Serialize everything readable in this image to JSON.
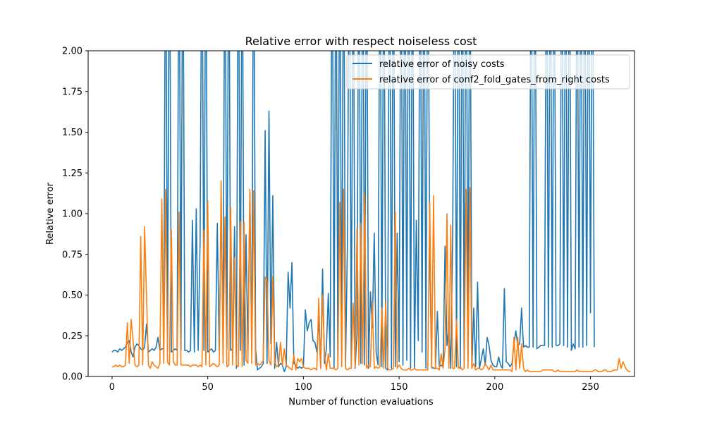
{
  "chart_data": {
    "type": "line",
    "title": "Relative error with respect noiseless cost",
    "xlabel": "Number of function evaluations",
    "ylabel": "Relative error",
    "xlim": [
      -12.5,
      273
    ],
    "ylim": [
      0,
      2
    ],
    "x_ticks": [
      0,
      50,
      100,
      150,
      200,
      250
    ],
    "x_tick_labels": [
      "0",
      "50",
      "100",
      "150",
      "200",
      "250"
    ],
    "y_ticks": [
      0.0,
      0.25,
      0.5,
      0.75,
      1.0,
      1.25,
      1.5,
      1.75,
      2.0
    ],
    "y_tick_labels": [
      "0.00",
      "0.25",
      "0.50",
      "0.75",
      "1.00",
      "1.25",
      "1.50",
      "1.75",
      "2.00"
    ],
    "legend_position": "top-right",
    "series": [
      {
        "name": "relative error of noisy costs",
        "color": "#1f77b4",
        "values": [
          0.15,
          0.16,
          0.16,
          0.15,
          0.17,
          0.16,
          0.17,
          0.18,
          0.21,
          0.22,
          0.15,
          0.12,
          0.18,
          0.2,
          0.19,
          0.17,
          0.16,
          0.18,
          0.32,
          0.15,
          0.16,
          0.17,
          0.16,
          0.18,
          0.24,
          0.16,
          0.17,
          0.17,
          3.0,
          0.16,
          3.0,
          0.15,
          0.16,
          0.17,
          0.16,
          3.0,
          0.16,
          3.0,
          0.16,
          0.16,
          0.15,
          0.16,
          0.96,
          0.15,
          1.03,
          0.16,
          0.82,
          3.0,
          0.16,
          3.0,
          0.15,
          0.16,
          0.17,
          0.15,
          0.16,
          0.94,
          0.16,
          1.04,
          0.26,
          3.0,
          0.17,
          3.0,
          0.16,
          0.17,
          0.92,
          0.05,
          3.0,
          0.16,
          3.0,
          0.07,
          0.87,
          0.15,
          1.13,
          0.16,
          3.0,
          0.17,
          0.04,
          0.05,
          0.06,
          0.08,
          1.51,
          0.08,
          1.63,
          0.2,
          1.11,
          0.05,
          0.21,
          0.06,
          0.08,
          0.07,
          0.03,
          0.06,
          0.64,
          0.42,
          0.7,
          0.08,
          0.07,
          0.05,
          0.06,
          0.05,
          0.06,
          0.41,
          0.28,
          0.33,
          0.35,
          0.22,
          0.21,
          0.15,
          0.36,
          0.05,
          0.66,
          0.08,
          0.17,
          0.51,
          0.12,
          3.0,
          0.05,
          3.0,
          0.05,
          3.0,
          0.06,
          3.0,
          0.06,
          0.82,
          3.0,
          0.06,
          3.0,
          0.05,
          0.26,
          3.0,
          0.08,
          3.0,
          0.07,
          3.0,
          0.05,
          0.52,
          0.3,
          0.88,
          0.15,
          0.07,
          3.0,
          0.06,
          3.0,
          0.05,
          0.04,
          3.0,
          0.05,
          3.0,
          0.06,
          0.88,
          0.09,
          3.0,
          0.07,
          3.0,
          0.1,
          3.0,
          0.05,
          3.0,
          0.05,
          0.96,
          0.22,
          3.0,
          0.15,
          3.0,
          0.05,
          3.0,
          0.75,
          0.06,
          0.05,
          0.05,
          0.4,
          0.06,
          0.07,
          0.06,
          0.8,
          0.19,
          0.3,
          0.05,
          0.86,
          3.0,
          0.06,
          3.0,
          0.05,
          3.0,
          0.06,
          3.0,
          0.07,
          3.0,
          0.05,
          0.42,
          0.06,
          0.58,
          0.05,
          0.11,
          0.17,
          0.07,
          0.24,
          0.19,
          0.1,
          0.07,
          0.06,
          0.06,
          0.12,
          0.07,
          0.05,
          0.54,
          0.09,
          0.08,
          0.06,
          0.08,
          0.2,
          0.28,
          0.19,
          0.2,
          0.42,
          0.18,
          0.19,
          0.18,
          0.18,
          3.0,
          0.18,
          3.0,
          0.17,
          0.18,
          0.19,
          0.19,
          0.19,
          3.0,
          0.18,
          3.0,
          0.18,
          3.0,
          0.19,
          0.19,
          0.2,
          3.0,
          0.19,
          3.0,
          0.18,
          3.0,
          0.16,
          0.2,
          0.17,
          3.0,
          0.18,
          3.0,
          0.18,
          3.0,
          0.19,
          3.0,
          0.39,
          3.0,
          0.18
        ],
        "visible_points": 253
      },
      {
        "name": "relative error of conf2_fold_gates_from_right costs",
        "color": "#ff7f0e",
        "values": [
          0.06,
          0.06,
          0.07,
          0.06,
          0.07,
          0.06,
          0.06,
          0.07,
          0.33,
          0.08,
          0.35,
          0.22,
          0.07,
          0.06,
          0.07,
          0.86,
          0.07,
          0.92,
          0.5,
          0.07,
          0.05,
          0.09,
          0.07,
          0.06,
          0.05,
          0.08,
          1.09,
          0.08,
          1.15,
          0.09,
          0.07,
          0.9,
          0.09,
          0.07,
          0.07,
          1.01,
          0.07,
          0.07,
          0.07,
          0.07,
          0.07,
          0.06,
          0.07,
          0.07,
          0.07,
          0.06,
          0.07,
          0.06,
          0.9,
          0.07,
          1.08,
          0.06,
          0.07,
          0.08,
          0.07,
          0.06,
          0.07,
          1.2,
          0.08,
          0.98,
          0.06,
          0.07,
          1.04,
          0.07,
          0.73,
          0.07,
          0.06,
          0.95,
          0.06,
          0.95,
          0.1,
          0.08,
          1.15,
          0.08,
          1.14,
          0.07,
          0.08,
          0.07,
          0.08,
          0.1,
          0.61,
          0.58,
          0.1,
          0.07,
          0.61,
          0.09,
          0.06,
          0.07,
          0.21,
          0.07,
          0.17,
          0.07,
          0.06,
          0.05,
          0.04,
          0.13,
          0.04,
          0.11,
          0.09,
          0.11,
          0.06,
          0.05,
          0.05,
          0.05,
          0.04,
          0.05,
          0.05,
          0.04,
          0.48,
          0.05,
          0.5,
          0.14,
          0.04,
          0.14,
          0.05,
          0.05,
          0.05,
          0.04,
          0.05,
          1.07,
          0.06,
          1.15,
          0.05,
          0.04,
          0.05,
          0.05,
          0.45,
          0.06,
          0.91,
          0.07,
          0.94,
          0.08,
          1.12,
          0.05,
          0.07,
          0.06,
          0.46,
          0.05,
          0.06,
          0.05,
          0.06,
          0.42,
          0.05,
          0.46,
          0.05,
          0.04,
          0.04,
          0.05,
          1.01,
          0.05,
          0.07,
          0.05,
          0.04,
          0.04,
          0.04,
          0.05,
          0.04,
          0.04,
          0.05,
          0.04,
          0.04,
          0.04,
          0.04,
          0.04,
          0.04,
          0.04,
          1.07,
          0.05,
          1.11,
          0.05,
          0.05,
          0.04,
          0.14,
          0.05,
          0.17,
          1.0,
          0.05,
          0.93,
          0.05,
          0.05,
          0.35,
          0.05,
          0.06,
          0.04,
          0.05,
          1.15,
          0.05,
          1.16,
          0.05,
          0.08,
          0.04,
          0.05,
          0.05,
          0.04,
          0.05,
          0.08,
          0.06,
          0.04,
          0.07,
          0.04,
          0.04,
          0.04,
          0.04,
          0.04,
          0.04,
          0.04,
          0.04,
          0.04,
          0.04,
          0.03,
          0.24,
          0.04,
          0.24,
          0.05,
          0.2,
          0.05,
          0.03,
          0.04,
          0.03,
          0.03,
          0.03,
          0.03,
          0.03,
          0.03,
          0.03,
          0.04,
          0.04,
          0.04,
          0.04,
          0.04,
          0.04,
          0.03,
          0.03,
          0.04,
          0.03,
          0.03,
          0.03,
          0.03,
          0.03,
          0.03,
          0.03,
          0.03,
          0.03,
          0.04,
          0.03,
          0.03,
          0.03,
          0.03,
          0.03,
          0.03,
          0.03,
          0.03,
          0.04,
          0.04,
          0.03,
          0.03,
          0.03,
          0.04,
          0.04,
          0.03,
          0.03,
          0.03,
          0.04,
          0.04,
          0.04,
          0.11,
          0.05,
          0.09,
          0.06,
          0.04,
          0.03,
          0.03
        ]
      }
    ]
  }
}
